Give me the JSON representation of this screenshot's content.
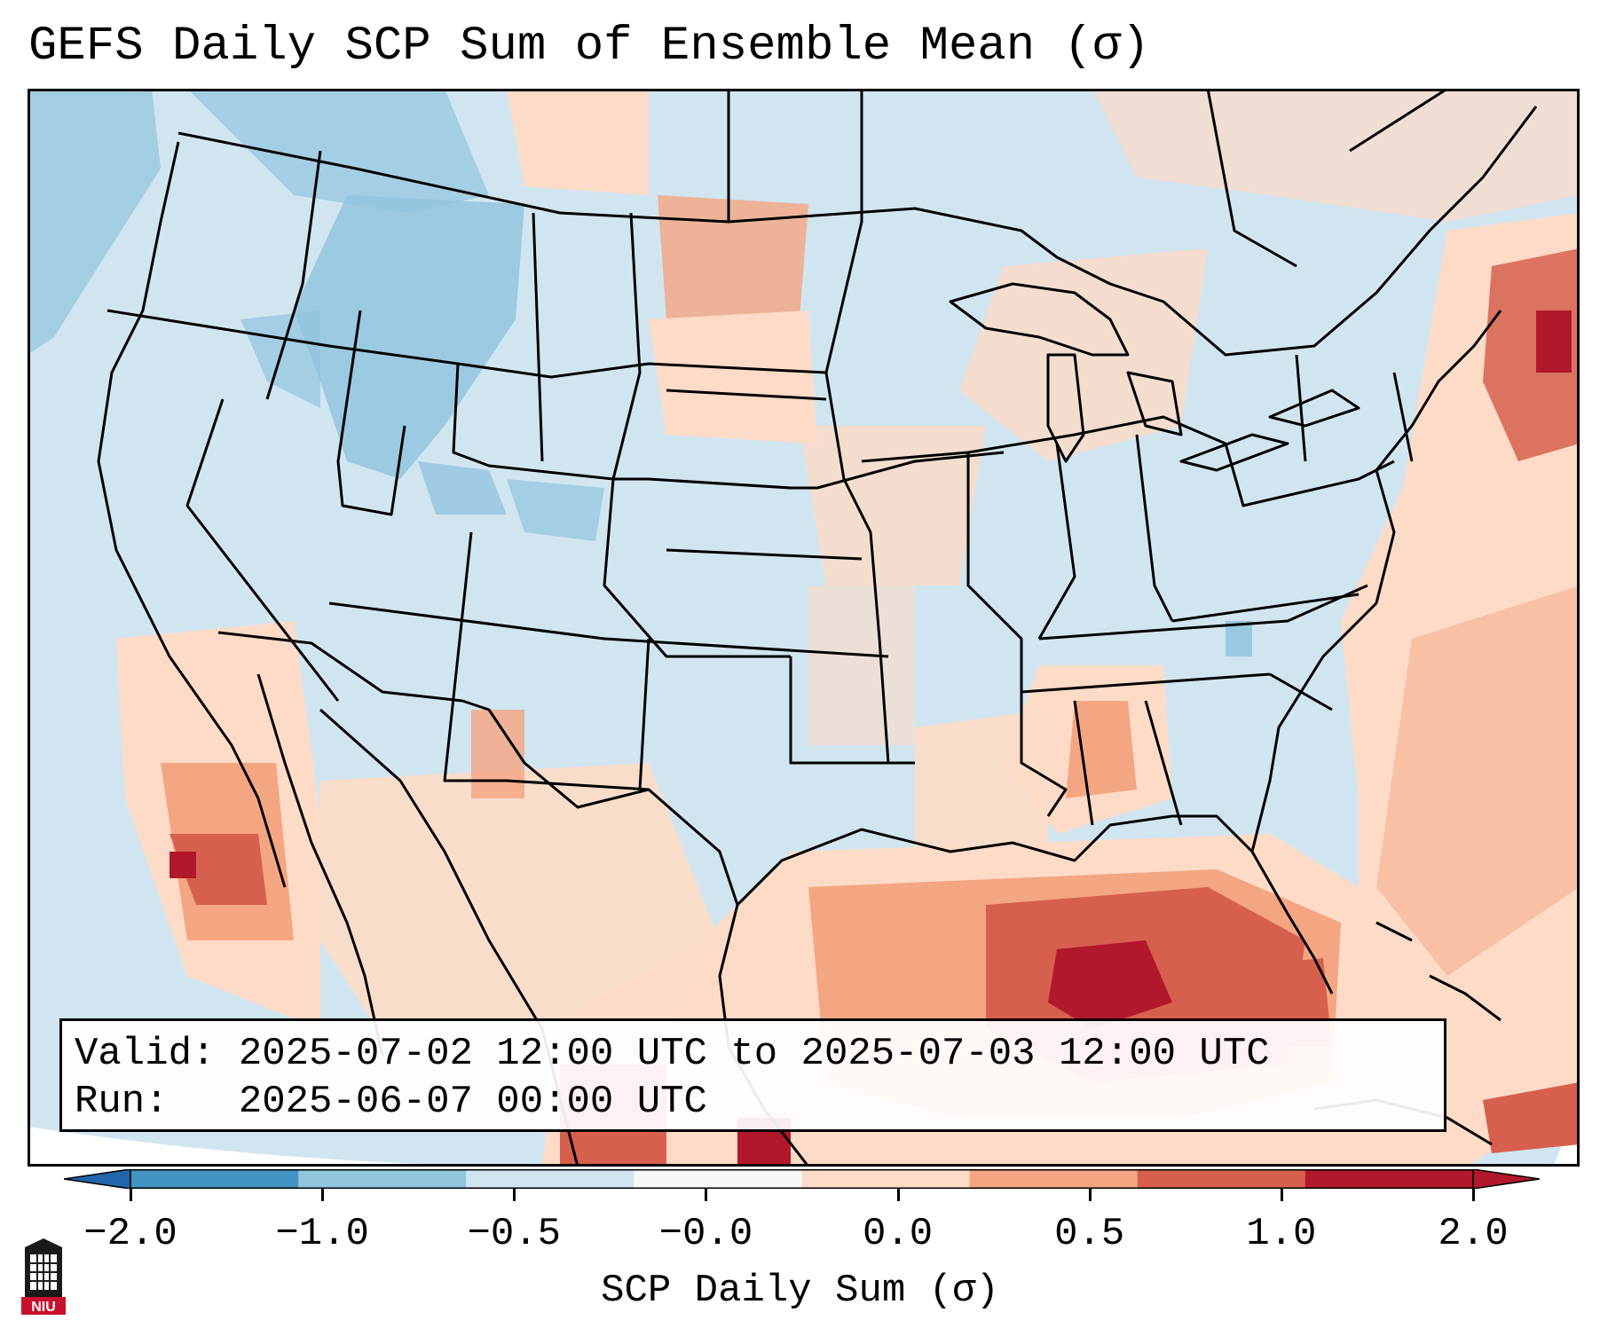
{
  "title": "GEFS Daily SCP Sum of Ensemble Mean (σ)",
  "info": {
    "valid_label": "Valid:",
    "valid_value": "2025-07-02 12:00 UTC to 2025-07-03 12:00 UTC",
    "run_label": "Run:",
    "run_value": "2025-06-07 00:00 UTC"
  },
  "colorbar": {
    "label": "SCP Daily Sum (σ)",
    "ticks": [
      "−2.0",
      "−1.0",
      "−0.5",
      "−0.0",
      "0.0",
      "0.5",
      "1.0",
      "2.0"
    ],
    "colors": [
      "#4393c3",
      "#92c5de",
      "#d1e5f0",
      "#f7f7f7",
      "#fddbc7",
      "#f4a582",
      "#d6604d",
      "#b2182b"
    ],
    "extend_low_color": "#2166ac",
    "extend_high_color": "#b2182b"
  },
  "map": {
    "background_color": "#d1e5f0",
    "border_color": "#000000",
    "outside_color": "#ffffff"
  },
  "logo": {
    "text": "NIU",
    "color": "#c8102e"
  }
}
